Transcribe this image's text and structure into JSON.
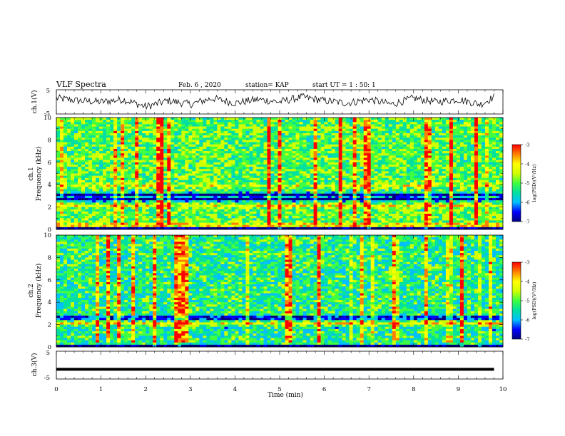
{
  "header": {
    "title": "VLF Spectra",
    "date": "Feb. 6 , 2020",
    "station": "station= KAP",
    "start_ut": "start UT = 1 : 50: 1"
  },
  "colors": {
    "scale": [
      "#000080",
      "#0000ff",
      "#00bfff",
      "#00e0a0",
      "#40ff40",
      "#d0ff00",
      "#ffff00",
      "#ff8000",
      "#ff0000"
    ]
  },
  "chart_data": [
    {
      "id": "ch1-waveform",
      "type": "line",
      "ylabel": "ch.1(V)",
      "ylim": [
        -5,
        5
      ],
      "yticks": [
        "5",
        "-5"
      ],
      "xlim": [
        0,
        10
      ],
      "x": [
        0,
        0.5,
        1,
        1.5,
        2,
        2.5,
        3,
        3.5,
        4,
        4.5,
        5,
        5.5,
        6,
        6.5,
        7,
        7.5,
        8,
        8.5,
        9,
        9.5,
        9.8
      ],
      "values": [
        1.5,
        0.5,
        0,
        1,
        -2,
        0.5,
        -1,
        1.5,
        -0.5,
        1,
        0,
        2,
        0.5,
        -0.5,
        1,
        -1,
        1.5,
        0,
        1,
        -1,
        2
      ]
    },
    {
      "id": "ch1-spectrogram",
      "type": "heatmap",
      "ylabel_top": "ch.1",
      "ylabel": "Frequency (kHz)",
      "ylim": [
        0,
        10
      ],
      "yticks": [
        "0",
        "2",
        "4",
        "6",
        "8",
        "10"
      ],
      "xlim": [
        0,
        10
      ],
      "zlim": [
        -7,
        -3
      ],
      "colorbar_label": "log(PSD)(V²/Hz)",
      "colorbar_ticks": [
        "-3",
        "-4",
        "-5",
        "-6",
        "-7"
      ],
      "dominant_features": [
        {
          "freq_khz": 3.1,
          "level": -6.8
        },
        {
          "freq_khz": 2.7,
          "level": -6.8
        },
        {
          "freq_khz": 2.1,
          "level": -4.2
        },
        {
          "freq_khz": 3.9,
          "level": -4.5
        },
        {
          "freq_khz": 0.4,
          "level": -4.0
        }
      ]
    },
    {
      "id": "ch2-spectrogram",
      "type": "heatmap",
      "ylabel_top": "ch.2",
      "ylabel": "Frequency (kHz)",
      "ylim": [
        0,
        10
      ],
      "yticks": [
        "0",
        "2",
        "4",
        "6",
        "8",
        "10"
      ],
      "xlim": [
        0,
        10
      ],
      "zlim": [
        -7,
        -3
      ],
      "colorbar_label": "log(PSD)(V²/Hz)",
      "colorbar_ticks": [
        "-3",
        "-4",
        "-5",
        "-6",
        "-7"
      ],
      "dominant_features": [
        {
          "freq_khz": 2.6,
          "level": -6.8
        },
        {
          "freq_khz": 2.1,
          "level": -4.2
        },
        {
          "freq_khz": 1.6,
          "level": -5.5
        }
      ]
    },
    {
      "id": "ch3-waveform",
      "type": "line",
      "ylabel": "ch.3(V)",
      "ylim": [
        -5,
        5
      ],
      "yticks": [
        "5",
        "-5"
      ],
      "xlim": [
        0,
        10
      ],
      "x": [
        0,
        9.8
      ],
      "values": [
        -1.5,
        -1.5
      ]
    }
  ],
  "xaxis": {
    "label": "Time (min)",
    "ticks": [
      "0",
      "1",
      "2",
      "3",
      "4",
      "5",
      "6",
      "7",
      "8",
      "9",
      "10"
    ]
  }
}
